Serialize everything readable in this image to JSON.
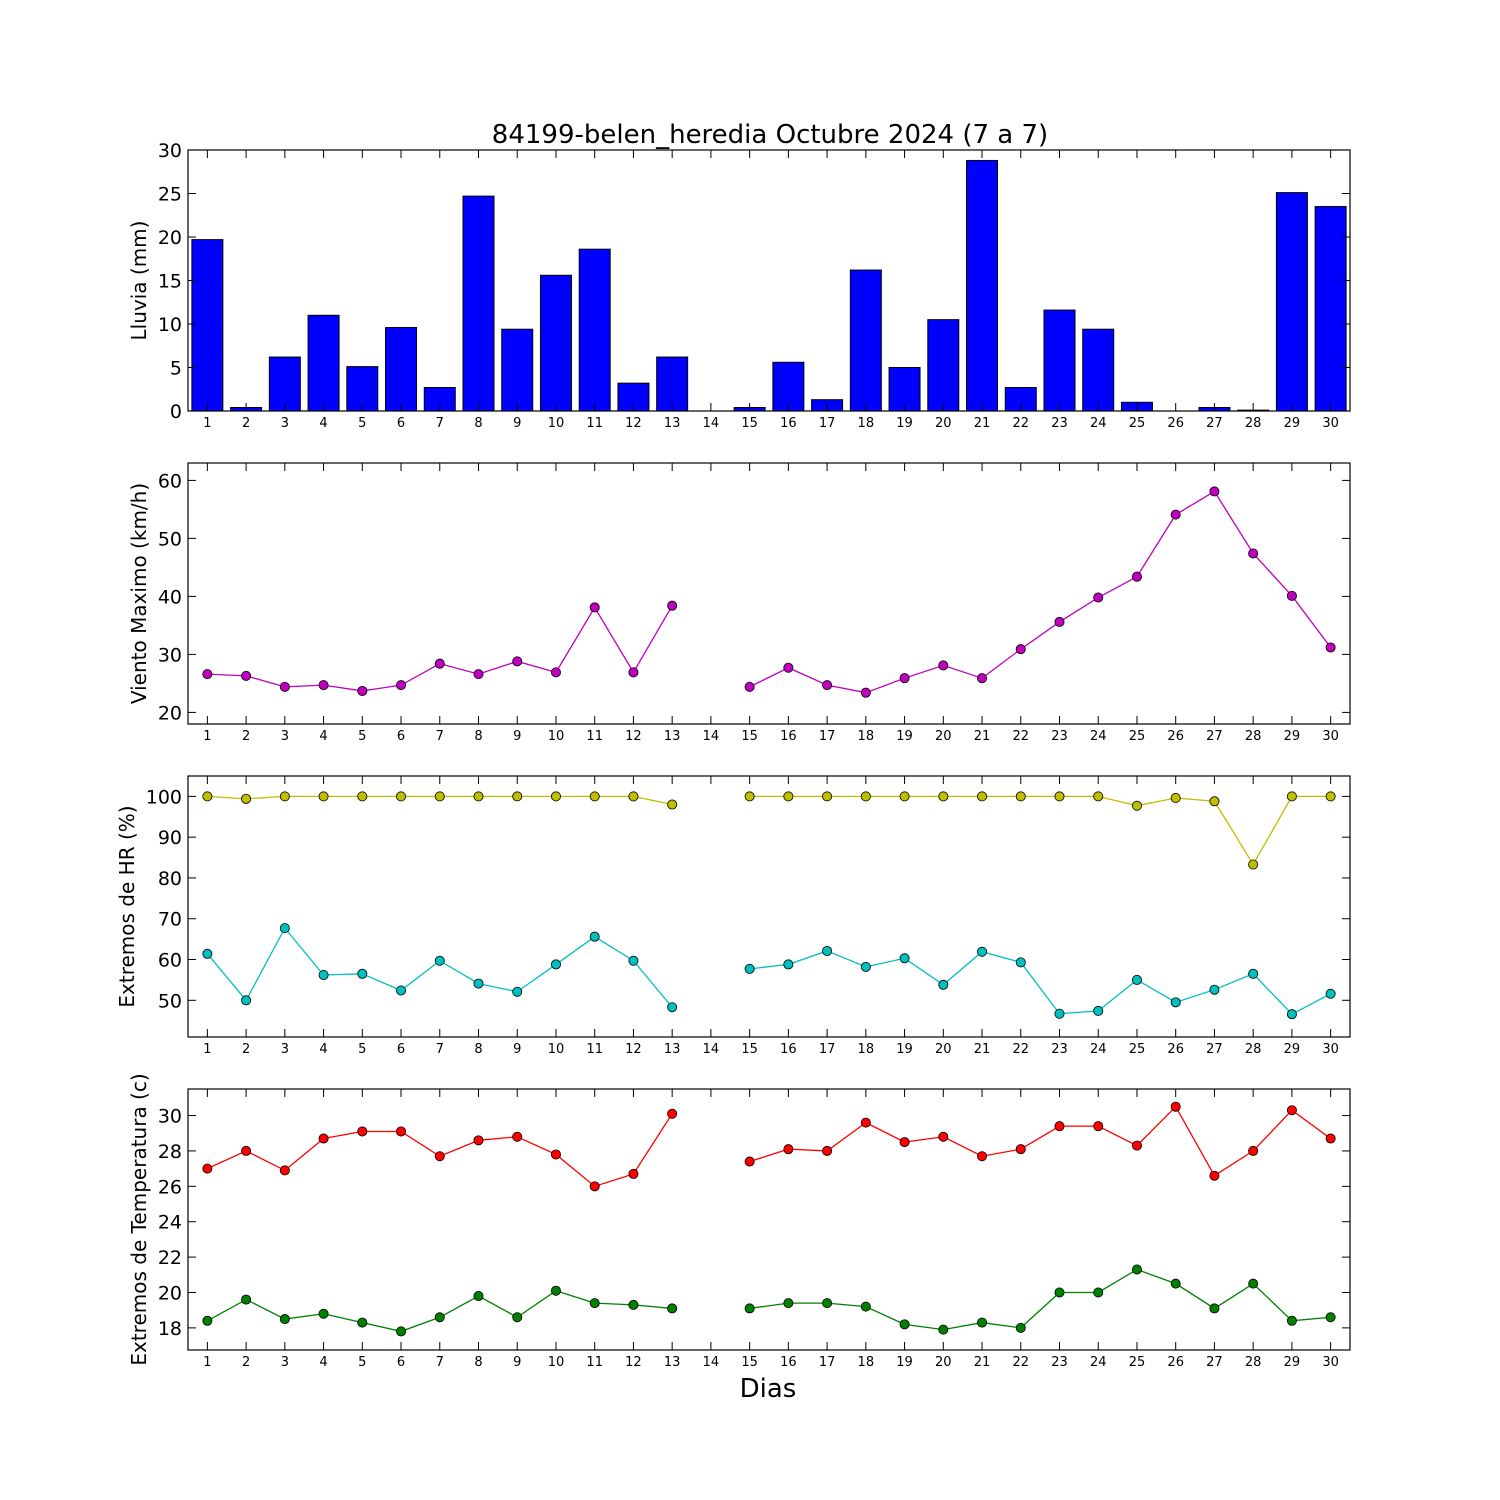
{
  "chart_data": {
    "title": "84199-belen_heredia Octubre 2024  (7 a 7)",
    "xlabel": "Dias",
    "days": [
      1,
      2,
      3,
      4,
      5,
      6,
      7,
      8,
      9,
      10,
      11,
      12,
      13,
      14,
      15,
      16,
      17,
      18,
      19,
      20,
      21,
      22,
      23,
      24,
      25,
      26,
      27,
      28,
      29,
      30
    ],
    "panels": [
      {
        "type": "bar",
        "ylabel": "Lluvia (mm)",
        "ylim": [
          0,
          30
        ],
        "yticks": [
          0,
          5,
          10,
          15,
          20,
          25,
          30
        ],
        "grid": false,
        "series": [
          {
            "color": "#0000ff",
            "values": [
              19.7,
              0.4,
              6.2,
              11.0,
              5.1,
              9.6,
              2.7,
              24.7,
              9.4,
              15.6,
              18.6,
              3.2,
              6.2,
              0.0,
              0.4,
              5.6,
              1.3,
              16.2,
              5.0,
              10.5,
              28.8,
              2.7,
              11.6,
              9.4,
              1.0,
              0.0,
              0.4,
              0.1,
              25.1,
              23.5
            ]
          }
        ]
      },
      {
        "type": "line",
        "ylabel": "Viento Maximo (km/h)",
        "ylim": [
          18,
          63
        ],
        "yticks": [
          20,
          30,
          40,
          50,
          60
        ],
        "grid": false,
        "series": [
          {
            "color": "#bf00bf",
            "values": [
              26.6,
              26.3,
              24.4,
              24.7,
              23.7,
              24.7,
              28.4,
              26.6,
              28.8,
              26.9,
              38.1,
              26.9,
              38.4,
              null,
              24.4,
              27.7,
              24.7,
              23.4,
              25.9,
              28.1,
              25.9,
              30.9,
              35.6,
              39.8,
              43.4,
              54.1,
              58.1,
              47.4,
              40.1,
              31.2
            ]
          }
        ]
      },
      {
        "type": "line",
        "ylabel": "Extremos de HR (%)",
        "ylim": [
          41,
          105
        ],
        "yticks": [
          50,
          60,
          70,
          80,
          90,
          100
        ],
        "grid": false,
        "series": [
          {
            "color": "#bfbf00",
            "values": [
              100,
              99.4,
              100,
              100,
              100,
              100,
              100,
              100,
              100,
              100,
              100,
              100,
              98.0,
              null,
              100,
              100,
              100,
              100,
              100,
              100,
              100,
              100,
              100,
              100,
              97.7,
              99.6,
              98.8,
              83.3,
              100,
              100
            ]
          },
          {
            "color": "#00bfbf",
            "values": [
              61.4,
              50.0,
              67.7,
              56.2,
              56.5,
              52.4,
              59.7,
              54.1,
              52.1,
              58.8,
              65.6,
              59.7,
              48.3,
              null,
              57.7,
              58.8,
              62.1,
              58.2,
              60.3,
              53.8,
              61.9,
              59.3,
              46.7,
              47.4,
              55.0,
              49.5,
              52.6,
              56.5,
              46.6,
              51.6
            ]
          }
        ]
      },
      {
        "type": "line",
        "ylabel": "Extremos de Temperatura (c)",
        "ylim": [
          16.75,
          31.5
        ],
        "yticks": [
          18,
          20,
          22,
          24,
          26,
          28,
          30
        ],
        "grid": false,
        "series": [
          {
            "color": "#ff0000",
            "values": [
              27.0,
              28.0,
              26.9,
              28.7,
              29.1,
              29.1,
              27.7,
              28.6,
              28.8,
              27.8,
              26.0,
              26.7,
              30.1,
              null,
              27.4,
              28.1,
              28.0,
              29.6,
              28.5,
              28.8,
              27.7,
              28.1,
              29.4,
              29.4,
              28.3,
              30.5,
              26.6,
              28.0,
              30.3,
              28.7
            ]
          },
          {
            "color": "#008000",
            "values": [
              18.4,
              19.6,
              18.5,
              18.8,
              18.3,
              17.8,
              18.6,
              19.8,
              18.6,
              20.1,
              19.4,
              19.3,
              19.1,
              null,
              19.1,
              19.4,
              19.4,
              19.2,
              18.2,
              17.9,
              18.3,
              18.0,
              20.0,
              20.0,
              21.3,
              20.5,
              19.1,
              20.5,
              18.4,
              18.6
            ]
          }
        ]
      }
    ]
  }
}
